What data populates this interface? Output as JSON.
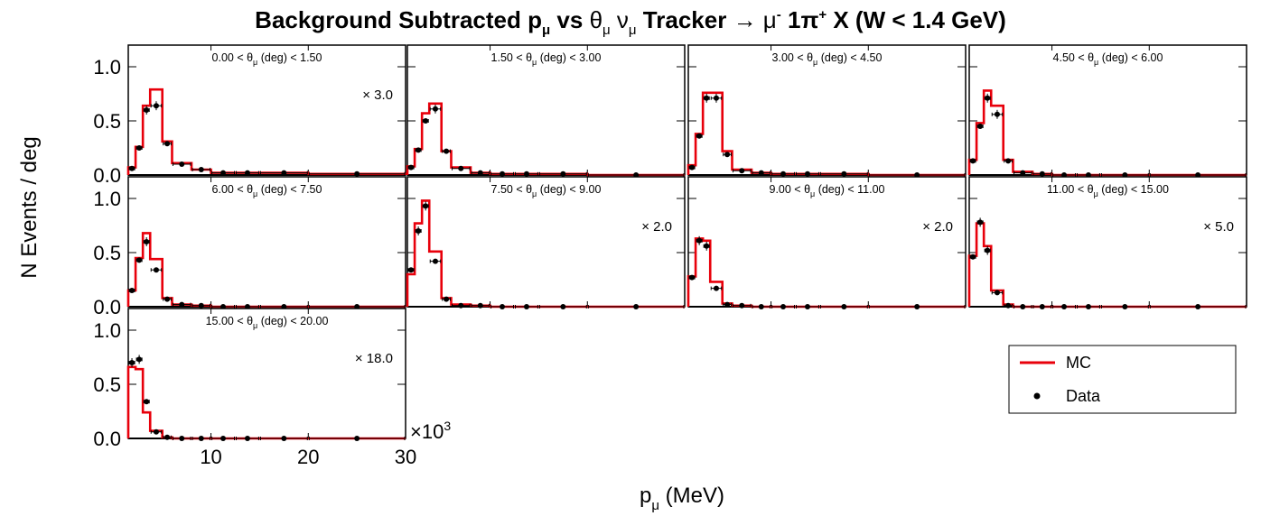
{
  "figure": {
    "title_pre": "Background Subtracted p",
    "title_mu_sub": "μ",
    "title_vs": " vs ",
    "title_theta": "θ",
    "title_theta_sub": "μ",
    "title_nu": "ν",
    "title_nu_sub": "μ",
    "title_tracker": " Tracker ",
    "title_arrow": "→",
    "title_mu": " μ",
    "title_mu_sup": "-",
    "title_pi": " 1π",
    "title_pi_sup": "+",
    "title_post": " X  (W < 1.4 GeV)",
    "ylabel": "N Events / deg",
    "xlabel_p": "p",
    "xlabel_sub": "μ",
    "xlabel_unit": " (MeV)",
    "x_exponent_base": "×10",
    "x_exponent_power": "3"
  },
  "legend": {
    "mc_label": "MC",
    "data_label": "Data",
    "mc_color": "#e8000b",
    "data_color": "#000000"
  },
  "chart_data": {
    "type": "histogram",
    "x_axis": {
      "range": [
        1.5,
        30
      ],
      "ticks": [
        10,
        20,
        30
      ],
      "tick_labels": [
        "10",
        "20",
        "30"
      ]
    },
    "y_axis": {
      "range": [
        0,
        1.2
      ],
      "ticks": [
        0,
        0.5,
        1.0
      ],
      "tick_labels": [
        "0.0",
        "0.5",
        "1.0"
      ]
    },
    "bin_edges": [
      1.5,
      2.25,
      3.0,
      3.75,
      5.0,
      6.0,
      8.0,
      10.0,
      12.5,
      15.0,
      20.0,
      30.0
    ],
    "panels": [
      {
        "label_pre": "0.00 < θ",
        "label_sub": "μ",
        "label_post": " (deg) < 1.50",
        "scale": "× 3.0",
        "mc": [
          0.07,
          0.26,
          0.64,
          0.79,
          0.31,
          0.11,
          0.05,
          0.02,
          0.02,
          0.02,
          0.01
        ],
        "data": [
          0.06,
          0.25,
          0.6,
          0.64,
          0.29,
          0.1,
          0.05,
          0.02,
          0.02,
          0.02,
          0.01
        ]
      },
      {
        "label_pre": "1.50 < θ",
        "label_sub": "μ",
        "label_post": " (deg) < 3.00",
        "scale": "",
        "mc": [
          0.08,
          0.24,
          0.57,
          0.66,
          0.22,
          0.07,
          0.02,
          0.01,
          0.01,
          0.01,
          0.0
        ],
        "data": [
          0.07,
          0.23,
          0.5,
          0.61,
          0.22,
          0.06,
          0.02,
          0.01,
          0.01,
          0.01,
          0.0
        ]
      },
      {
        "label_pre": "3.00 < θ",
        "label_sub": "μ",
        "label_post": " (deg) < 4.50",
        "scale": "",
        "mc": [
          0.09,
          0.38,
          0.76,
          0.76,
          0.22,
          0.05,
          0.02,
          0.01,
          0.01,
          0.01,
          0.0
        ],
        "data": [
          0.07,
          0.36,
          0.71,
          0.71,
          0.19,
          0.04,
          0.02,
          0.01,
          0.01,
          0.01,
          0.0
        ]
      },
      {
        "label_pre": "4.50 < θ",
        "label_sub": "μ",
        "label_post": " (deg) < 6.00",
        "scale": "",
        "mc": [
          0.14,
          0.48,
          0.78,
          0.64,
          0.14,
          0.03,
          0.01,
          0.0,
          0.0,
          0.0,
          0.0
        ],
        "data": [
          0.13,
          0.45,
          0.71,
          0.56,
          0.13,
          0.02,
          0.01,
          0.0,
          0.0,
          0.0,
          0.0
        ]
      },
      {
        "label_pre": "6.00 < θ",
        "label_sub": "μ",
        "label_post": " (deg) < 7.50",
        "scale": "",
        "mc": [
          0.15,
          0.45,
          0.68,
          0.44,
          0.08,
          0.02,
          0.01,
          0.0,
          0.0,
          0.0,
          0.0
        ],
        "data": [
          0.15,
          0.43,
          0.6,
          0.34,
          0.07,
          0.02,
          0.01,
          0.0,
          0.0,
          0.0,
          0.0
        ]
      },
      {
        "label_pre": "7.50 < θ",
        "label_sub": "μ",
        "label_post": " (deg) < 9.00",
        "scale": "× 2.0",
        "mc": [
          0.3,
          0.77,
          0.98,
          0.51,
          0.08,
          0.02,
          0.01,
          0.0,
          0.0,
          0.0,
          0.0
        ],
        "data": [
          0.34,
          0.7,
          0.93,
          0.42,
          0.07,
          0.01,
          0.01,
          0.0,
          0.0,
          0.0,
          0.0
        ]
      },
      {
        "label_pre": "9.00 < θ",
        "label_sub": "μ",
        "label_post": " (deg) < 11.00",
        "scale": "× 2.0",
        "mc": [
          0.28,
          0.63,
          0.61,
          0.23,
          0.03,
          0.01,
          0.0,
          0.0,
          0.0,
          0.0,
          0.0
        ],
        "data": [
          0.27,
          0.61,
          0.56,
          0.17,
          0.02,
          0.01,
          0.0,
          0.0,
          0.0,
          0.0,
          0.0
        ]
      },
      {
        "label_pre": "11.00 < θ",
        "label_sub": "μ",
        "label_post": " (deg) < 15.00",
        "scale": "× 5.0",
        "mc": [
          0.47,
          0.77,
          0.56,
          0.15,
          0.02,
          0.0,
          0.0,
          0.0,
          0.0,
          0.0,
          0.0
        ],
        "data": [
          0.46,
          0.78,
          0.52,
          0.13,
          0.01,
          0.0,
          0.0,
          0.0,
          0.0,
          0.0,
          0.0
        ]
      },
      {
        "label_pre": "15.00 < θ",
        "label_sub": "μ",
        "label_post": " (deg) < 20.00",
        "scale": "× 18.0",
        "mc": [
          0.66,
          0.64,
          0.24,
          0.07,
          0.01,
          0.0,
          0.0,
          0.0,
          0.0,
          0.0,
          0.0
        ],
        "data": [
          0.7,
          0.73,
          0.34,
          0.06,
          0.01,
          0.0,
          0.0,
          0.0,
          0.0,
          0.0,
          0.0
        ]
      }
    ]
  }
}
